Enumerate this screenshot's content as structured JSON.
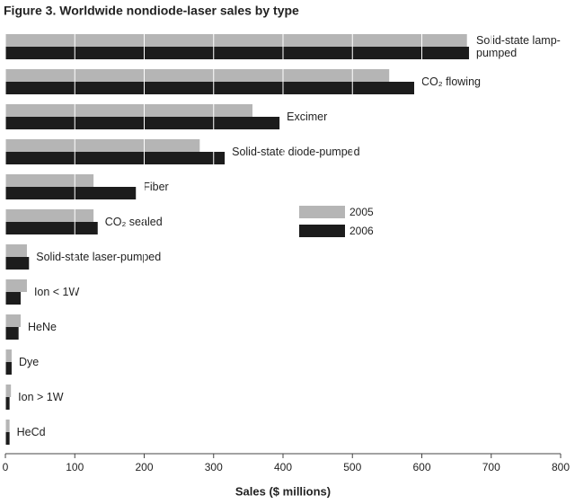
{
  "chart_data": {
    "type": "hbar",
    "title": "Figure 3. Worldwide nondiode-laser sales by type",
    "x_label": "Sales ($ millions)",
    "categories": [
      "Solid-state lamp-pumped",
      "CO₂ flowing",
      "Excimer",
      "Solid-state diode-pumped",
      "Fiber",
      "CO₂ sealed",
      "Solid-state laser-pumped",
      "Ion < 1W",
      "HeNe",
      "Dye",
      "Ion > 1W",
      "HeCd"
    ],
    "series": [
      {
        "name": "2005",
        "color": "#b5b5b5",
        "values": [
          665,
          553,
          356,
          280,
          127,
          127,
          31,
          31,
          22,
          9,
          8,
          6
        ]
      },
      {
        "name": "2006",
        "color": "#1c1c1c",
        "values": [
          668,
          589,
          395,
          316,
          188,
          133,
          34,
          22,
          19,
          9,
          6,
          6
        ]
      }
    ],
    "xlim": [
      0,
      800
    ],
    "xticks": [
      0,
      100,
      200,
      300,
      400,
      500,
      600,
      700,
      800
    ],
    "grid": true,
    "legend": "right"
  }
}
